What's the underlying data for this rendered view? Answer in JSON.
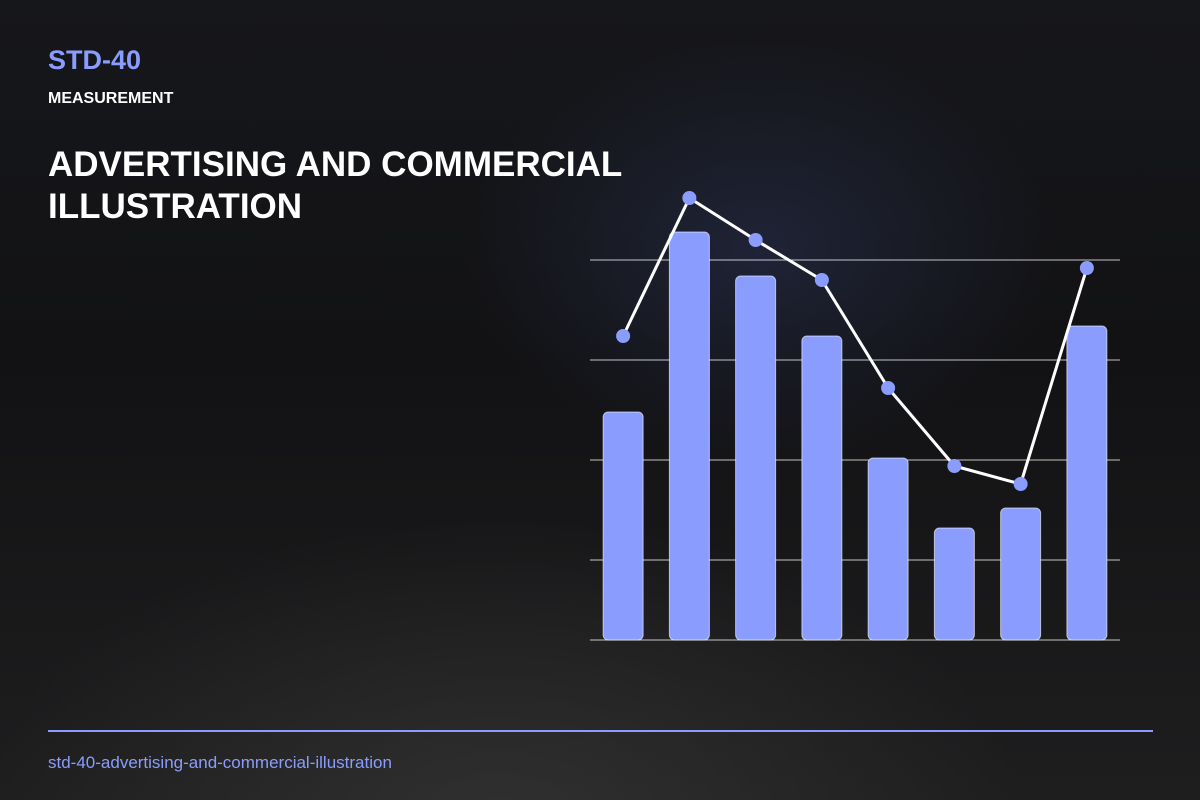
{
  "code": "STD-40",
  "kicker": "MEASUREMENT",
  "title": "ADVERTISING AND COMMERCIAL ILLUSTRATION",
  "slug": "std-40-advertising-and-commercial-illustration",
  "chart_data": {
    "type": "bar",
    "categories": [
      null,
      null,
      null,
      null,
      null,
      null,
      null,
      null
    ],
    "ylim": [
      0,
      120
    ],
    "yticks": [
      20,
      45,
      70,
      95
    ],
    "grid": true,
    "series": [
      {
        "type": "bar",
        "color": "#8a9dff",
        "values": [
          57,
          102,
          91,
          76,
          45.5,
          28,
          33,
          78.5
        ]
      },
      {
        "type": "line",
        "color": "#ffffff",
        "marker_color": "#8a9dff",
        "values": [
          76,
          110.5,
          100,
          90,
          63,
          43.5,
          39,
          93
        ]
      }
    ]
  }
}
